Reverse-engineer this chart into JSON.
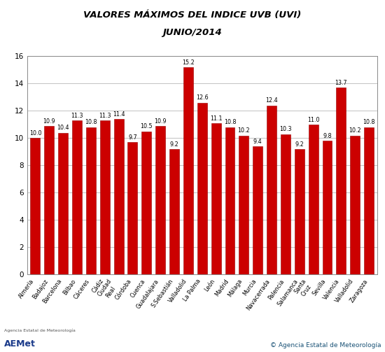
{
  "title_line1": "VALORES MÁXIMOS DEL INDICE UVB (UVI)",
  "title_line2": "JUNIO/2014",
  "labels": [
    "Almería",
    "Badajoz",
    "Barcelona",
    "Bilbao",
    "Cáceres",
    "Cádiz",
    "Ciudad\nReal",
    "Córdoba",
    "Cuenca",
    "Guadalajara",
    "S.Sebastián",
    "Valladolid",
    "La Palma",
    "León",
    "Madrid",
    "Málaga",
    "Murcia",
    "Navacerrada",
    "Palencia",
    "Salamanca",
    "Santa\nCruz",
    "Sevilla",
    "Valencia",
    "Valladolid",
    "Zaragoza"
  ],
  "values": [
    10.0,
    10.9,
    10.4,
    11.3,
    10.8,
    11.3,
    11.4,
    9.7,
    10.5,
    10.9,
    9.2,
    15.2,
    12.6,
    11.1,
    10.8,
    10.2,
    9.4,
    12.4,
    10.3,
    9.2,
    11.0,
    9.8,
    13.7,
    10.2,
    10.8
  ],
  "bar_color": "#cc0000",
  "bar_edge_color": "#990000",
  "ylim": [
    0,
    16
  ],
  "yticks": [
    0,
    2,
    4,
    6,
    8,
    10,
    12,
    14,
    16
  ],
  "grid_color": "#aaaaaa",
  "bg_color": "#ffffff",
  "copyright_text": "© Agencia Estatal de Meteorología",
  "title_fontsize": 9.5,
  "label_fontsize": 5.8,
  "value_fontsize": 5.8,
  "ytick_fontsize": 7.5
}
